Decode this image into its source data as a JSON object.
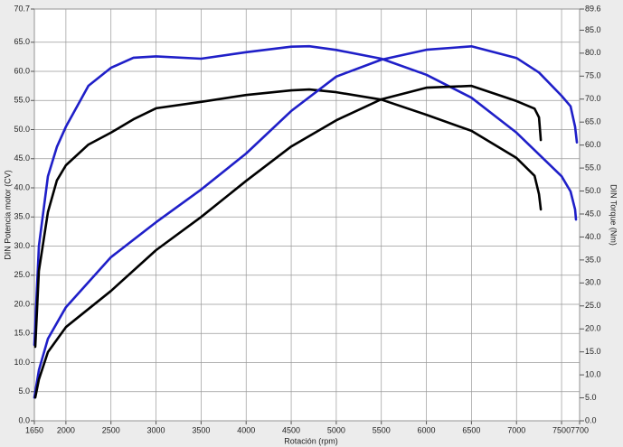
{
  "chart_data": {
    "type": "line",
    "x_label": "Rotación (rpm)",
    "y_label": "DIN Potencia motor (CV)",
    "y2_label": "DIN Torque (Nm)",
    "xlim": [
      1650,
      7700
    ],
    "xticks": [
      1650,
      2000,
      2500,
      3000,
      3500,
      4000,
      4500,
      5000,
      5500,
      6000,
      6500,
      7000,
      7500,
      7700
    ],
    "ylim": [
      0,
      70.7
    ],
    "yticks": [
      {
        "value": 0,
        "label": "0.0"
      },
      {
        "value": 5,
        "label": "5.0"
      },
      {
        "value": 10,
        "label": "10.0"
      },
      {
        "value": 15,
        "label": "15.0"
      },
      {
        "value": 20,
        "label": "20.0"
      },
      {
        "value": 25,
        "label": "25.0"
      },
      {
        "value": 30,
        "label": "30.0"
      },
      {
        "value": 35,
        "label": "35.0"
      },
      {
        "value": 40,
        "label": "40.0"
      },
      {
        "value": 45,
        "label": "45.0"
      },
      {
        "value": 50,
        "label": "50.0"
      },
      {
        "value": 55,
        "label": "55.0"
      },
      {
        "value": 60,
        "label": "60.0"
      },
      {
        "value": 65,
        "label": "65.0"
      },
      70.7
    ],
    "y2lim": [
      0,
      89.6
    ],
    "y2ticks": [
      {
        "value": 0,
        "label": "0.0"
      },
      {
        "value": 5,
        "label": "5.0"
      },
      {
        "value": 10,
        "label": "10.0"
      },
      {
        "value": 15,
        "label": "15.0"
      },
      {
        "value": 20,
        "label": "20.0"
      },
      {
        "value": 25,
        "label": "25.0"
      },
      {
        "value": 30,
        "label": "30.0"
      },
      {
        "value": 35,
        "label": "35.0"
      },
      {
        "value": 40,
        "label": "40.0"
      },
      {
        "value": 45,
        "label": "45.0"
      },
      {
        "value": 50,
        "label": "50.0"
      },
      {
        "value": 55,
        "label": "55.0"
      },
      {
        "value": 60,
        "label": "60.0"
      },
      {
        "value": 65,
        "label": "65.0"
      },
      {
        "value": 70,
        "label": "70.0"
      },
      {
        "value": 75,
        "label": "75.0"
      },
      {
        "value": 80,
        "label": "80.0"
      },
      {
        "value": 85,
        "label": "85.0"
      },
      89.6
    ],
    "grid": true,
    "series": [
      {
        "color": "#1f1fc8",
        "axis": "y2",
        "x": [
          1650,
          1700,
          1800,
          1900,
          2000,
          2250,
          2500,
          2750,
          3000,
          3500,
          4000,
          4500,
          4700,
          5000,
          5500,
          6000,
          6500,
          7000,
          7500,
          7600,
          7650,
          7660
        ],
        "values": [
          16.5,
          38.0,
          53.2,
          59.6,
          64.0,
          72.9,
          76.8,
          79.0,
          79.3,
          78.8,
          80.2,
          81.4,
          81.5,
          80.7,
          78.8,
          75.3,
          70.3,
          62.7,
          53.2,
          49.9,
          46.0,
          43.8
        ]
      },
      {
        "color": "#000000",
        "axis": "y2",
        "x": [
          1660,
          1700,
          1800,
          1900,
          2000,
          2250,
          2500,
          2750,
          3000,
          3500,
          4000,
          4500,
          4700,
          5000,
          5500,
          6000,
          6500,
          7000,
          7200,
          7250,
          7270
        ],
        "values": [
          16.1,
          32.6,
          45.4,
          52.3,
          55.6,
          60.1,
          62.7,
          65.6,
          68.0,
          69.4,
          70.9,
          71.9,
          72.1,
          71.5,
          69.9,
          66.6,
          63.1,
          57.2,
          53.3,
          49.3,
          46.0
        ]
      },
      {
        "color": "#1f1fc8",
        "x": [
          1650,
          1700,
          1800,
          2000,
          2500,
          3000,
          3500,
          4000,
          4500,
          5000,
          5500,
          6000,
          6500,
          7000,
          7250,
          7500,
          7600,
          7650,
          7670
        ],
        "values": [
          4.0,
          8.7,
          14.1,
          19.5,
          28.1,
          34.1,
          39.7,
          45.9,
          53.2,
          59.1,
          62.0,
          63.7,
          64.3,
          62.3,
          59.8,
          55.8,
          54.0,
          50.5,
          47.8
        ]
      },
      {
        "color": "#000000",
        "x": [
          1660,
          1700,
          1800,
          2000,
          2500,
          3000,
          3500,
          4000,
          4500,
          5000,
          5500,
          6000,
          6500,
          7000,
          7200,
          7250,
          7270
        ],
        "values": [
          4.0,
          7.1,
          11.8,
          16.1,
          22.3,
          29.3,
          35.0,
          41.2,
          47.1,
          51.6,
          55.2,
          57.2,
          57.5,
          54.9,
          53.6,
          52.1,
          48.2
        ]
      }
    ]
  }
}
